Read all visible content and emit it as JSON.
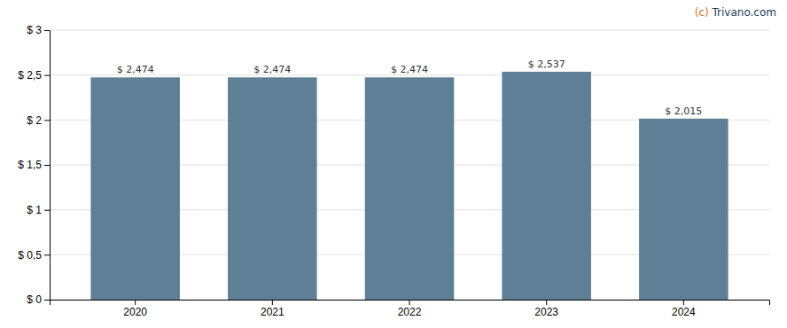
{
  "chart_data": {
    "type": "bar",
    "categories": [
      "2020",
      "2021",
      "2022",
      "2023",
      "2024"
    ],
    "values": [
      2.474,
      2.474,
      2.474,
      2.537,
      2.015
    ],
    "value_labels": [
      "$ 2,474",
      "$ 2,474",
      "$ 2,474",
      "$ 2,537",
      "$ 2,015"
    ],
    "color": "#5f7f96",
    "ylim": [
      0,
      3.0
    ],
    "yticks": [
      {
        "value": 0,
        "label": "$ 0"
      },
      {
        "value": 0.5,
        "label": "$ 0,5"
      },
      {
        "value": 1.0,
        "label": "$ 1"
      },
      {
        "value": 1.5,
        "label": "$ 1,5"
      },
      {
        "value": 2.0,
        "label": "$ 2"
      },
      {
        "value": 2.5,
        "label": "$ 2,5"
      },
      {
        "value": 3.0,
        "label": "$ 3"
      }
    ],
    "grid": true,
    "data_labels": true,
    "annotations": [
      {
        "text": "(c)",
        "color": "#e07020"
      },
      {
        "text": " Trivano.com",
        "color": "#1a3a5c"
      }
    ]
  }
}
